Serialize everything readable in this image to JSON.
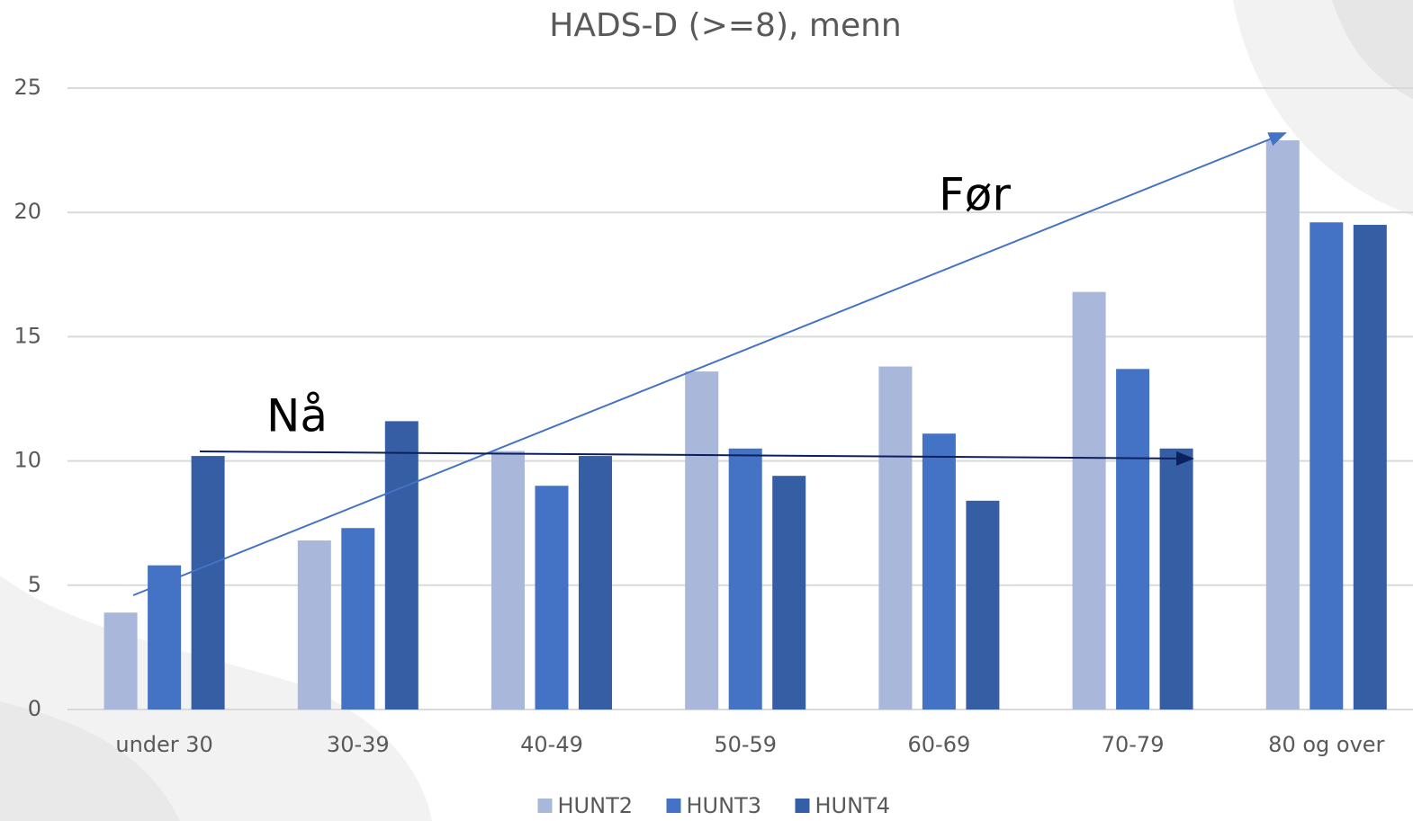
{
  "chart_data": {
    "type": "bar",
    "title": "HADS-D (>=8), menn",
    "categories": [
      "under 30",
      "30-39",
      "40-49",
      "50-59",
      "60-69",
      "70-79",
      "80 og over"
    ],
    "series": [
      {
        "name": "HUNT2",
        "color": "#a9b7db",
        "values": [
          3.9,
          6.8,
          10.4,
          13.6,
          13.8,
          16.8,
          22.9
        ]
      },
      {
        "name": "HUNT3",
        "color": "#4472c4",
        "values": [
          5.8,
          7.3,
          9.0,
          10.5,
          11.1,
          13.7,
          19.6
        ]
      },
      {
        "name": "HUNT4",
        "color": "#365ea5",
        "values": [
          10.2,
          11.6,
          10.2,
          9.4,
          8.4,
          10.5,
          19.5
        ]
      }
    ],
    "ylim": [
      0,
      25
    ],
    "yticks": [
      0,
      5,
      10,
      15,
      20,
      25
    ],
    "grid": true,
    "legend": "bottom",
    "annotations": [
      "Før",
      "Nå"
    ]
  }
}
